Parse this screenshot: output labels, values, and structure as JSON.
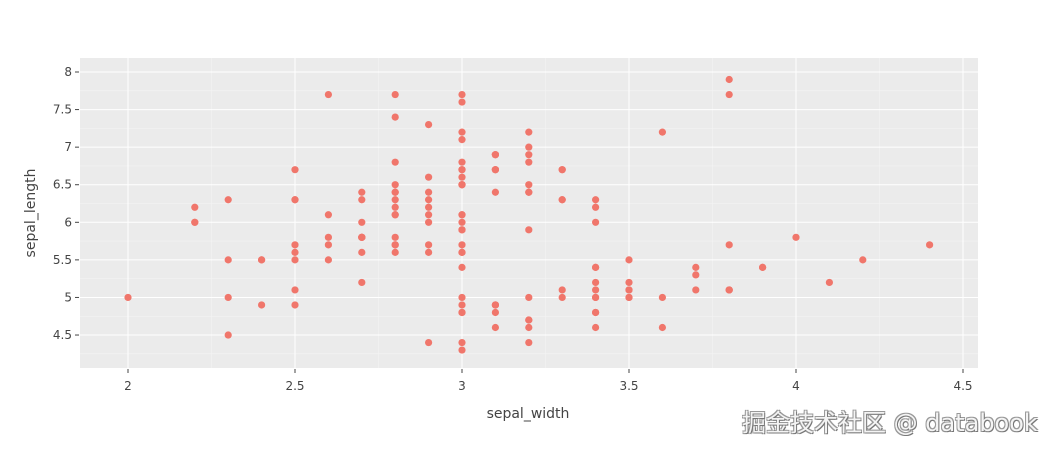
{
  "chart_data": {
    "type": "scatter",
    "title": "",
    "xlabel": "sepal_width",
    "ylabel": "sepal_length",
    "xlim": [
      1.85,
      4.55
    ],
    "ylim": [
      4.05,
      8.2
    ],
    "xticks": [
      2,
      2.5,
      3,
      3.5,
      4,
      4.5
    ],
    "xtick_labels": [
      "2",
      "2.5",
      "3",
      "3.5",
      "4",
      "4.5"
    ],
    "yticks": [
      4.5,
      5,
      5.5,
      6,
      6.5,
      7,
      7.5,
      8
    ],
    "ytick_labels": [
      "4.5",
      "5",
      "5.5",
      "6",
      "6.5",
      "7",
      "7.5",
      "8"
    ],
    "grid": true,
    "marker_color": "#F0766B",
    "plot_bg": "#EBEBEB",
    "points": [
      [
        3.5,
        5.1
      ],
      [
        3.0,
        4.9
      ],
      [
        3.2,
        4.7
      ],
      [
        3.1,
        4.6
      ],
      [
        3.6,
        5.0
      ],
      [
        3.9,
        5.4
      ],
      [
        3.4,
        4.6
      ],
      [
        3.4,
        5.0
      ],
      [
        2.9,
        4.4
      ],
      [
        3.1,
        4.9
      ],
      [
        3.7,
        5.4
      ],
      [
        3.4,
        4.8
      ],
      [
        3.0,
        4.8
      ],
      [
        3.0,
        4.3
      ],
      [
        4.0,
        5.8
      ],
      [
        4.4,
        5.7
      ],
      [
        3.9,
        5.4
      ],
      [
        3.5,
        5.1
      ],
      [
        3.8,
        5.7
      ],
      [
        3.8,
        5.1
      ],
      [
        3.4,
        5.4
      ],
      [
        3.7,
        5.1
      ],
      [
        3.6,
        4.6
      ],
      [
        3.3,
        5.1
      ],
      [
        3.4,
        4.8
      ],
      [
        3.0,
        5.0
      ],
      [
        3.4,
        5.0
      ],
      [
        3.5,
        5.2
      ],
      [
        3.4,
        5.2
      ],
      [
        3.2,
        4.7
      ],
      [
        3.1,
        4.8
      ],
      [
        3.4,
        5.4
      ],
      [
        4.1,
        5.2
      ],
      [
        4.2,
        5.5
      ],
      [
        3.1,
        4.9
      ],
      [
        3.2,
        5.0
      ],
      [
        3.5,
        5.5
      ],
      [
        3.1,
        4.9
      ],
      [
        3.0,
        4.4
      ],
      [
        3.4,
        5.1
      ],
      [
        3.5,
        5.0
      ],
      [
        2.3,
        4.5
      ],
      [
        3.2,
        4.4
      ],
      [
        3.5,
        5.0
      ],
      [
        3.8,
        5.1
      ],
      [
        3.0,
        4.8
      ],
      [
        3.8,
        5.1
      ],
      [
        3.2,
        4.6
      ],
      [
        3.7,
        5.3
      ],
      [
        3.3,
        5.0
      ],
      [
        3.2,
        7.0
      ],
      [
        3.2,
        6.4
      ],
      [
        3.1,
        6.9
      ],
      [
        2.3,
        5.5
      ],
      [
        2.8,
        6.5
      ],
      [
        2.8,
        5.7
      ],
      [
        3.3,
        6.3
      ],
      [
        2.4,
        4.9
      ],
      [
        2.9,
        6.6
      ],
      [
        2.7,
        5.2
      ],
      [
        2.0,
        5.0
      ],
      [
        3.0,
        5.9
      ],
      [
        2.2,
        6.0
      ],
      [
        2.9,
        6.1
      ],
      [
        2.9,
        5.6
      ],
      [
        3.1,
        6.7
      ],
      [
        3.0,
        5.6
      ],
      [
        2.7,
        5.8
      ],
      [
        2.2,
        6.2
      ],
      [
        2.5,
        5.6
      ],
      [
        3.2,
        5.9
      ],
      [
        2.8,
        6.1
      ],
      [
        2.5,
        6.3
      ],
      [
        2.8,
        6.1
      ],
      [
        2.9,
        6.4
      ],
      [
        3.0,
        6.6
      ],
      [
        2.8,
        6.8
      ],
      [
        3.0,
        6.7
      ],
      [
        2.9,
        6.0
      ],
      [
        2.6,
        5.7
      ],
      [
        2.4,
        5.5
      ],
      [
        2.4,
        5.5
      ],
      [
        2.7,
        5.8
      ],
      [
        2.7,
        6.0
      ],
      [
        3.0,
        5.4
      ],
      [
        3.4,
        6.0
      ],
      [
        3.1,
        6.7
      ],
      [
        2.3,
        6.3
      ],
      [
        3.0,
        5.6
      ],
      [
        2.5,
        5.5
      ],
      [
        2.6,
        5.5
      ],
      [
        3.0,
        6.1
      ],
      [
        2.6,
        5.8
      ],
      [
        2.3,
        5.0
      ],
      [
        2.7,
        5.6
      ],
      [
        3.0,
        5.7
      ],
      [
        2.9,
        5.7
      ],
      [
        2.9,
        6.2
      ],
      [
        2.5,
        5.1
      ],
      [
        2.8,
        5.7
      ],
      [
        3.3,
        6.3
      ],
      [
        2.7,
        5.8
      ],
      [
        3.0,
        7.1
      ],
      [
        2.9,
        6.3
      ],
      [
        3.0,
        6.5
      ],
      [
        3.0,
        7.6
      ],
      [
        2.5,
        4.9
      ],
      [
        2.9,
        7.3
      ],
      [
        2.5,
        6.7
      ],
      [
        3.6,
        7.2
      ],
      [
        3.2,
        6.5
      ],
      [
        2.7,
        6.4
      ],
      [
        3.0,
        6.8
      ],
      [
        2.5,
        5.7
      ],
      [
        2.8,
        5.8
      ],
      [
        3.2,
        6.4
      ],
      [
        3.0,
        6.5
      ],
      [
        3.8,
        7.7
      ],
      [
        2.6,
        7.7
      ],
      [
        2.2,
        6.0
      ],
      [
        3.2,
        6.9
      ],
      [
        2.8,
        5.6
      ],
      [
        2.8,
        7.7
      ],
      [
        2.7,
        6.3
      ],
      [
        3.3,
        6.7
      ],
      [
        3.2,
        7.2
      ],
      [
        2.8,
        6.2
      ],
      [
        3.0,
        6.1
      ],
      [
        2.8,
        6.4
      ],
      [
        3.0,
        7.2
      ],
      [
        2.8,
        7.4
      ],
      [
        3.8,
        7.9
      ],
      [
        2.8,
        6.4
      ],
      [
        2.8,
        6.3
      ],
      [
        2.6,
        6.1
      ],
      [
        3.0,
        7.7
      ],
      [
        3.4,
        6.3
      ],
      [
        3.1,
        6.4
      ],
      [
        3.0,
        6.0
      ],
      [
        3.1,
        6.9
      ],
      [
        3.1,
        6.7
      ],
      [
        3.1,
        6.9
      ],
      [
        2.7,
        5.8
      ],
      [
        3.2,
        6.8
      ],
      [
        3.3,
        6.7
      ],
      [
        3.0,
        6.7
      ],
      [
        2.5,
        6.3
      ],
      [
        3.0,
        6.5
      ],
      [
        3.4,
        6.2
      ],
      [
        3.0,
        5.9
      ]
    ]
  },
  "watermark": "掘金技术社区 @ databook"
}
